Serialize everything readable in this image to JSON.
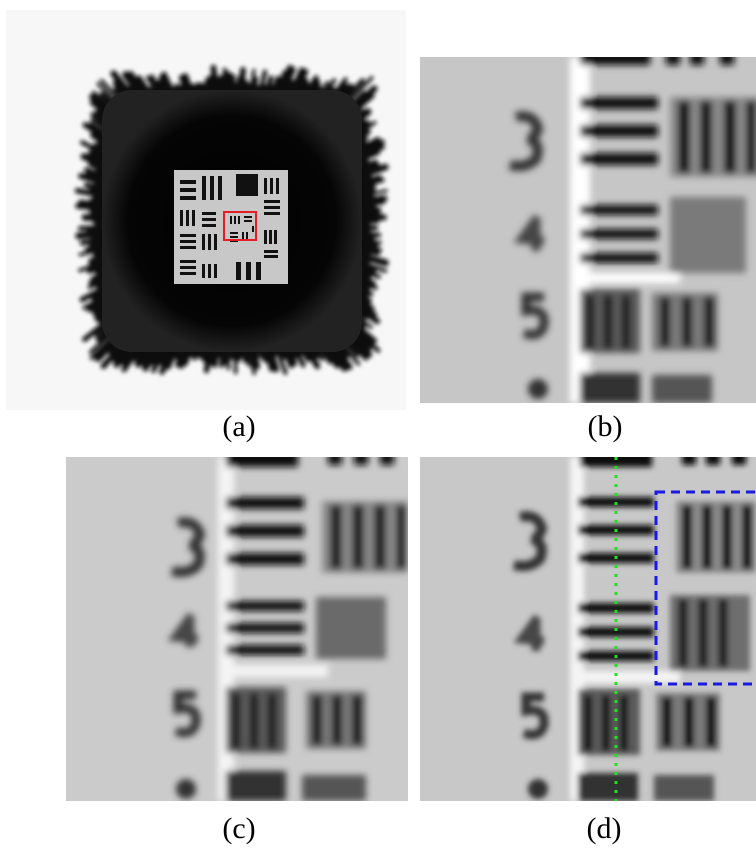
{
  "figure": {
    "panels": [
      {
        "id": "a",
        "label": "(a)",
        "content": "reconstruction-full-view"
      },
      {
        "id": "b",
        "label": "(b)",
        "content": "zoomed-region"
      },
      {
        "id": "c",
        "label": "(c)",
        "content": "zoomed-region"
      },
      {
        "id": "d",
        "label": "(d)",
        "content": "zoomed-region-annotated"
      }
    ],
    "colors": {
      "background": "#ffffff",
      "target_dark": "#0a0a0a",
      "target_light": "#c8c8c8",
      "roi_box": "#e31e24",
      "dotted_line": "#22e022",
      "dashed_box": "#1a1ae0"
    }
  }
}
